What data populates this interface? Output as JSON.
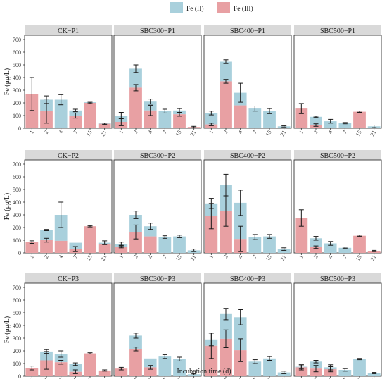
{
  "chart_data": {
    "type": "bar",
    "stacked": true,
    "xlabel": "Incubation time (d)",
    "ylabel": "Fe (μg/L)",
    "ylim": [
      0,
      700
    ],
    "yticks": [
      0,
      100,
      200,
      300,
      400,
      500,
      600,
      700
    ],
    "categories": [
      "1",
      "2",
      "4",
      "7",
      "15",
      "21"
    ],
    "legend": {
      "position": "top",
      "items": [
        {
          "label": "Fe (II)",
          "color": "#A9D0DC"
        },
        {
          "label": "Fe (III)",
          "color": "#E8A0A3"
        }
      ]
    },
    "panels": [
      {
        "title": "CK−P1",
        "fe3": [
          270,
          135,
          0,
          100,
          200,
          35
        ],
        "total": [
          270,
          225,
          225,
          140,
          205,
          40
        ],
        "err3": [
          130,
          95,
          0,
          20,
          5,
          5
        ],
        "errT": [
          0,
          30,
          40,
          10,
          0,
          0
        ]
      },
      {
        "title": "SBC300−P1",
        "fe3": [
          50,
          320,
          140,
          0,
          110,
          10
        ],
        "total": [
          100,
          470,
          210,
          135,
          140,
          10
        ],
        "err3": [
          30,
          25,
          40,
          0,
          15,
          0
        ],
        "errT": [
          25,
          30,
          20,
          15,
          15,
          5
        ]
      },
      {
        "title": "SBC400−P1",
        "fe3": [
          30,
          370,
          180,
          0,
          0,
          0
        ],
        "total": [
          120,
          525,
          280,
          155,
          135,
          15
        ],
        "err3": [
          10,
          15,
          0,
          0,
          0,
          0
        ],
        "errT": [
          15,
          15,
          75,
          20,
          20,
          5
        ]
      },
      {
        "title": "SBC500−P1",
        "fe3": [
          155,
          25,
          0,
          0,
          130,
          0
        ],
        "total": [
          155,
          90,
          55,
          40,
          130,
          15
        ],
        "err3": [
          40,
          10,
          0,
          0,
          5,
          0
        ],
        "errT": [
          0,
          5,
          15,
          5,
          0,
          10
        ]
      },
      {
        "title": "CK−P2",
        "fe3": [
          85,
          100,
          95,
          30,
          210,
          70
        ],
        "total": [
          85,
          180,
          300,
          80,
          210,
          80
        ],
        "err3": [
          10,
          15,
          0,
          20,
          5,
          0
        ],
        "errT": [
          0,
          5,
          100,
          0,
          0,
          15
        ]
      },
      {
        "title": "SBC300−P2",
        "fe3": [
          50,
          165,
          130,
          0,
          0,
          0
        ],
        "total": [
          70,
          300,
          210,
          125,
          130,
          20
        ],
        "err3": [
          10,
          55,
          0,
          0,
          0,
          0
        ],
        "errT": [
          15,
          30,
          25,
          10,
          10,
          10
        ]
      },
      {
        "title": "SBC400−P2",
        "fe3": [
          290,
          330,
          110,
          0,
          0,
          0
        ],
        "total": [
          390,
          535,
          395,
          125,
          130,
          30
        ],
        "err3": [
          100,
          120,
          100,
          0,
          0,
          0
        ],
        "errT": [
          40,
          85,
          100,
          20,
          15,
          10
        ]
      },
      {
        "title": "SBC500−P2",
        "fe3": [
          275,
          45,
          0,
          0,
          135,
          15
        ],
        "total": [
          275,
          115,
          75,
          40,
          135,
          15
        ],
        "err3": [
          65,
          10,
          0,
          0,
          5,
          5
        ],
        "errT": [
          0,
          15,
          15,
          5,
          0,
          0
        ]
      },
      {
        "title": "CK−P3",
        "fe3": [
          65,
          125,
          110,
          35,
          180,
          45
        ],
        "total": [
          65,
          195,
          175,
          95,
          180,
          45
        ],
        "err3": [
          15,
          70,
          15,
          15,
          5,
          5
        ],
        "errT": [
          0,
          15,
          25,
          10,
          0,
          0
        ]
      },
      {
        "title": "SBC300−P3",
        "fe3": [
          60,
          215,
          70,
          0,
          0,
          0
        ],
        "total": [
          60,
          320,
          140,
          155,
          135,
          15
        ],
        "err3": [
          10,
          15,
          15,
          0,
          0,
          0
        ],
        "errT": [
          0,
          20,
          0,
          15,
          15,
          5
        ]
      },
      {
        "title": "SBC400−P3",
        "fe3": [
          240,
          295,
          205,
          0,
          0,
          0
        ],
        "total": [
          290,
          490,
          465,
          115,
          140,
          30
        ],
        "err3": [
          100,
          70,
          90,
          0,
          0,
          0
        ],
        "errT": [
          50,
          45,
          60,
          15,
          15,
          10
        ]
      },
      {
        "title": "SBC500−P3",
        "fe3": [
          70,
          60,
          55,
          0,
          0,
          0
        ],
        "total": [
          75,
          115,
          70,
          50,
          135,
          25
        ],
        "err3": [
          20,
          25,
          20,
          0,
          0,
          0
        ],
        "errT": [
          15,
          10,
          20,
          10,
          5,
          5
        ]
      }
    ]
  }
}
